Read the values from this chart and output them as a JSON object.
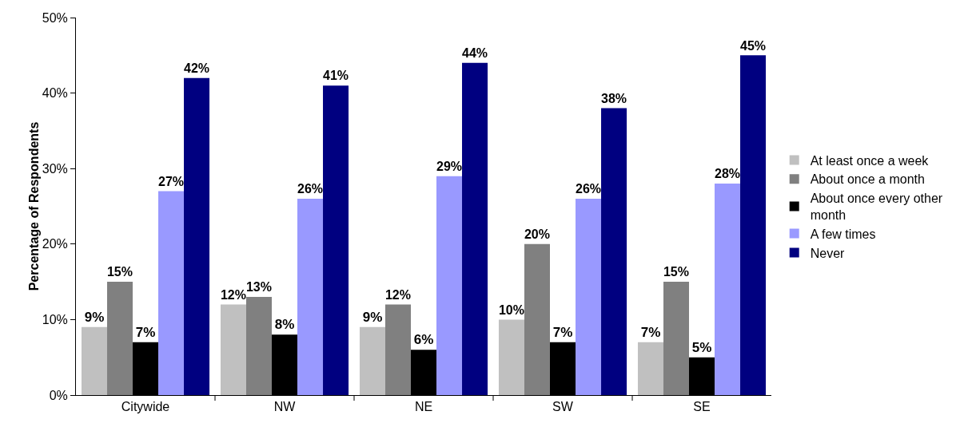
{
  "chart_data": {
    "type": "bar",
    "ylabel": "Percentage of Respondents",
    "categories": [
      "Citywide",
      "NW",
      "NE",
      "SW",
      "SE"
    ],
    "series": [
      {
        "name": "At least once a week",
        "color": "#c0c0c0",
        "values": [
          9,
          12,
          9,
          10,
          7
        ],
        "value_labels": [
          "9%",
          "12%",
          "9%",
          "10%",
          "7%"
        ]
      },
      {
        "name": "About once a month",
        "color": "#808080",
        "values": [
          15,
          13,
          12,
          20,
          15
        ],
        "value_labels": [
          "15%",
          "13%",
          "12%",
          "20%",
          "15%"
        ]
      },
      {
        "name": "About once every other month",
        "color": "#000000",
        "values": [
          7,
          8,
          6,
          7,
          5
        ],
        "value_labels": [
          "7%",
          "8%",
          "6%",
          "7%",
          "5%"
        ]
      },
      {
        "name": "A few times",
        "color": "#9999ff",
        "values": [
          27,
          26,
          29,
          26,
          28
        ],
        "value_labels": [
          "27%",
          "26%",
          "29%",
          "26%",
          "28%"
        ]
      },
      {
        "name": "Never",
        "color": "#000080",
        "values": [
          42,
          41,
          44,
          38,
          45
        ],
        "value_labels": [
          "42%",
          "41%",
          "44%",
          "38%",
          "45%"
        ]
      }
    ],
    "ylim": [
      0,
      50
    ],
    "yticks": [
      {
        "value": 0,
        "label": "0%"
      },
      {
        "value": 10,
        "label": "10%"
      },
      {
        "value": 20,
        "label": "20%"
      },
      {
        "value": 30,
        "label": "30%"
      },
      {
        "value": 40,
        "label": "40%"
      },
      {
        "value": 50,
        "label": "50%"
      }
    ],
    "grid": false,
    "legend": "right"
  }
}
